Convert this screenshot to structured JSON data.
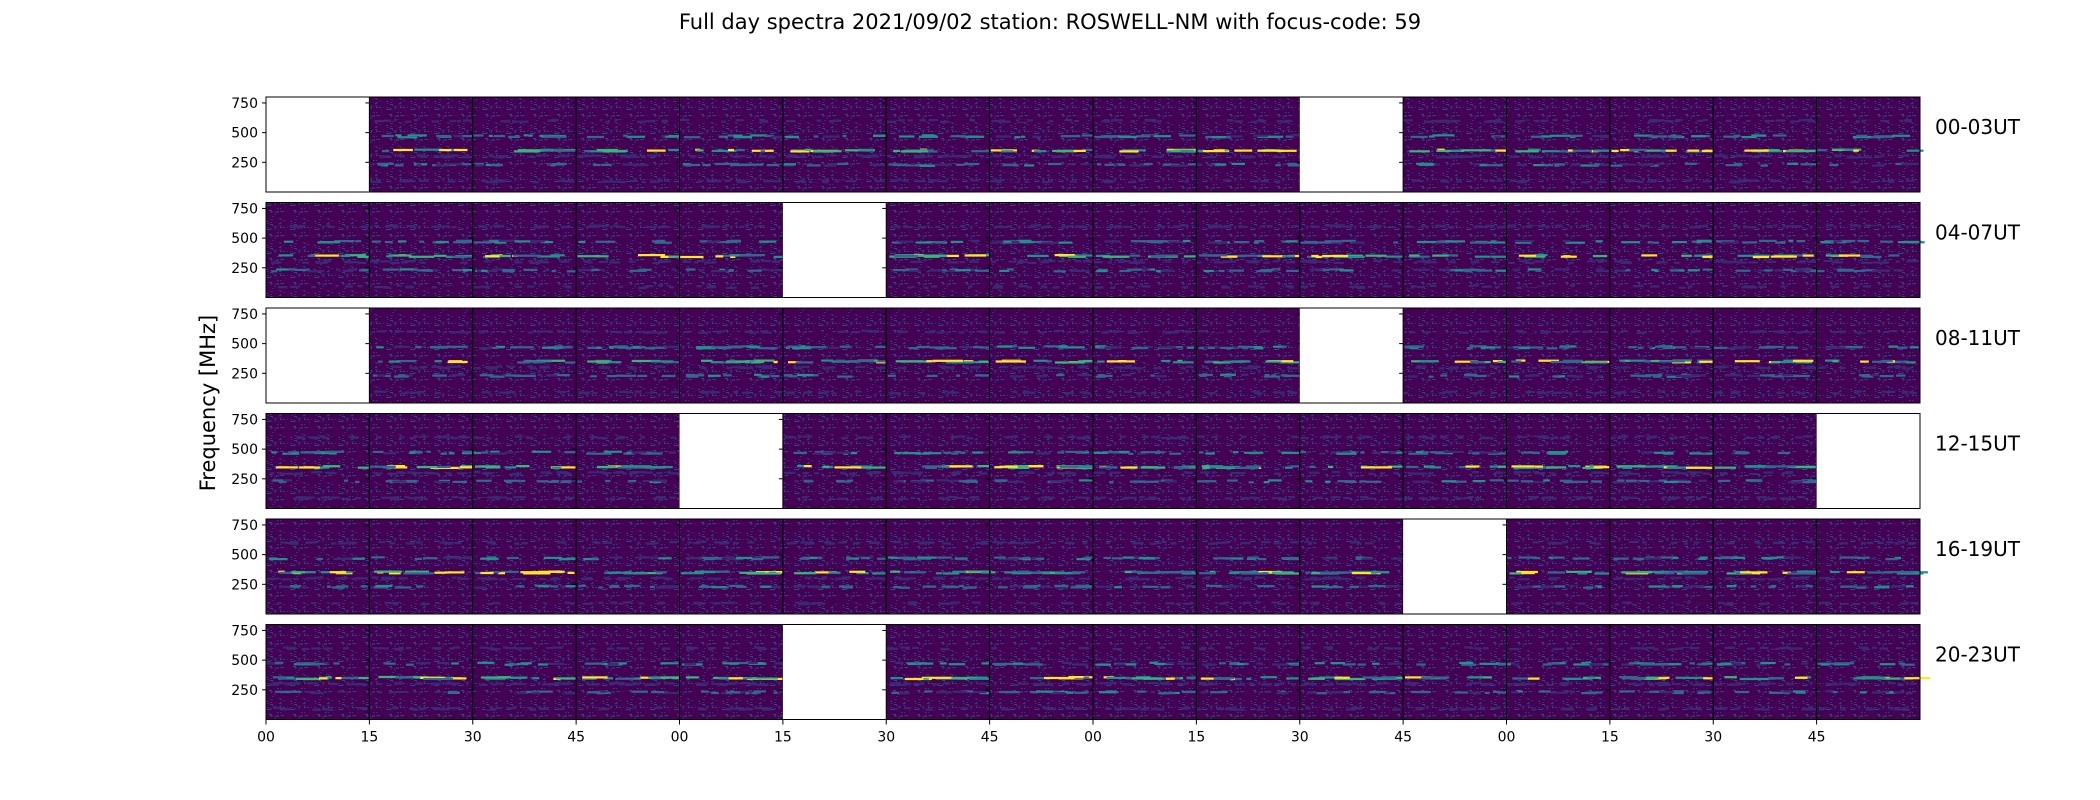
{
  "chart_data": {
    "type": "heatmap",
    "title": "Full day spectra 2021/09/02 station: ROSWELL-NM with focus-code: 59",
    "ylabel": "Frequency [MHz]",
    "ylim": [
      0,
      800
    ],
    "y_ticks": [
      250,
      500,
      750
    ],
    "x_tick_labels": [
      "00",
      "15",
      "30",
      "45",
      "00",
      "15",
      "30",
      "45",
      "00",
      "15",
      "30",
      "45",
      "00",
      "15",
      "30",
      "45"
    ],
    "panels_per_row": 16,
    "panel_minutes": 15,
    "colormap": [
      "#440154",
      "#3b2a73",
      "#31688e",
      "#21918c",
      "#35b779",
      "#fde725"
    ],
    "blank_color": "#ffffff",
    "rows": [
      {
        "label": "00-03UT",
        "missing": [
          0,
          10
        ]
      },
      {
        "label": "04-07UT",
        "missing": [
          5
        ]
      },
      {
        "label": "08-11UT",
        "missing": [
          0,
          10
        ]
      },
      {
        "label": "12-15UT",
        "missing": [
          4,
          15
        ]
      },
      {
        "label": "16-19UT",
        "missing": [
          11
        ]
      },
      {
        "label": "20-23UT",
        "missing": [
          5
        ]
      }
    ],
    "emission_bands": [
      {
        "freq": 350,
        "strength": 0.9
      },
      {
        "freq": 470,
        "strength": 0.55
      },
      {
        "freq": 230,
        "strength": 0.45
      },
      {
        "freq": 300,
        "strength": 0.25
      },
      {
        "freq": 600,
        "strength": 0.2
      },
      {
        "freq": 90,
        "strength": 0.2
      }
    ]
  }
}
